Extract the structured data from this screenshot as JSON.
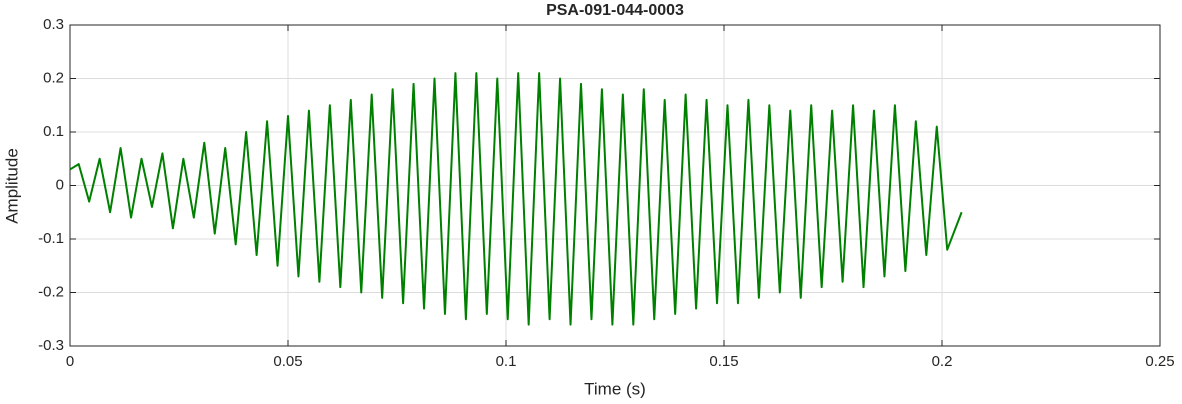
{
  "chart_data": {
    "type": "line",
    "title": "PSA-091-044-0003",
    "xlabel": "Time (s)",
    "ylabel": "Amplitude",
    "xlim": [
      0,
      0.25
    ],
    "ylim": [
      -0.3,
      0.3
    ],
    "xticks": [
      0,
      0.05,
      0.1,
      0.15,
      0.2,
      0.25
    ],
    "yticks": [
      -0.3,
      -0.2,
      -0.1,
      0,
      0.1,
      0.2,
      0.3
    ],
    "grid": true,
    "series": [
      {
        "color": "#008000",
        "x": [
          0,
          0.002,
          0.0044,
          0.0068,
          0.0092,
          0.0116,
          0.014,
          0.0164,
          0.0188,
          0.0212,
          0.0236,
          0.026,
          0.0284,
          0.0308,
          0.0332,
          0.0356,
          0.038,
          0.0404,
          0.0428,
          0.0452,
          0.0476,
          0.05,
          0.0524,
          0.0548,
          0.0572,
          0.0596,
          0.062,
          0.0644,
          0.0668,
          0.0692,
          0.0716,
          0.074,
          0.0764,
          0.0788,
          0.0812,
          0.0836,
          0.086,
          0.0884,
          0.0908,
          0.0932,
          0.0956,
          0.098,
          0.1004,
          0.1028,
          0.1052,
          0.1076,
          0.11,
          0.1124,
          0.1148,
          0.1172,
          0.1196,
          0.122,
          0.1244,
          0.1268,
          0.1292,
          0.1316,
          0.134,
          0.1364,
          0.1388,
          0.1412,
          0.1436,
          0.146,
          0.1484,
          0.1508,
          0.1532,
          0.1556,
          0.158,
          0.1604,
          0.1628,
          0.1652,
          0.1676,
          0.17,
          0.1724,
          0.1748,
          0.1772,
          0.1796,
          0.182,
          0.1844,
          0.1868,
          0.1892,
          0.1916,
          0.194,
          0.1964,
          0.1988,
          0.2012,
          0.2045
        ],
        "values": [
          0.03,
          0.04,
          -0.03,
          0.05,
          -0.05,
          0.07,
          -0.06,
          0.05,
          -0.04,
          0.06,
          -0.08,
          0.05,
          -0.06,
          0.08,
          -0.09,
          0.07,
          -0.11,
          0.1,
          -0.13,
          0.12,
          -0.15,
          0.13,
          -0.17,
          0.14,
          -0.18,
          0.15,
          -0.19,
          0.16,
          -0.2,
          0.17,
          -0.21,
          0.18,
          -0.22,
          0.19,
          -0.23,
          0.2,
          -0.24,
          0.21,
          -0.25,
          0.21,
          -0.24,
          0.2,
          -0.25,
          0.21,
          -0.26,
          0.21,
          -0.25,
          0.2,
          -0.26,
          0.19,
          -0.25,
          0.18,
          -0.26,
          0.17,
          -0.26,
          0.18,
          -0.25,
          0.16,
          -0.24,
          0.17,
          -0.23,
          0.16,
          -0.22,
          0.15,
          -0.22,
          0.16,
          -0.21,
          0.15,
          -0.2,
          0.14,
          -0.21,
          0.15,
          -0.19,
          0.14,
          -0.18,
          0.15,
          -0.19,
          0.14,
          -0.17,
          0.15,
          -0.16,
          0.12,
          -0.13,
          0.11,
          -0.12,
          -0.05
        ]
      }
    ]
  }
}
